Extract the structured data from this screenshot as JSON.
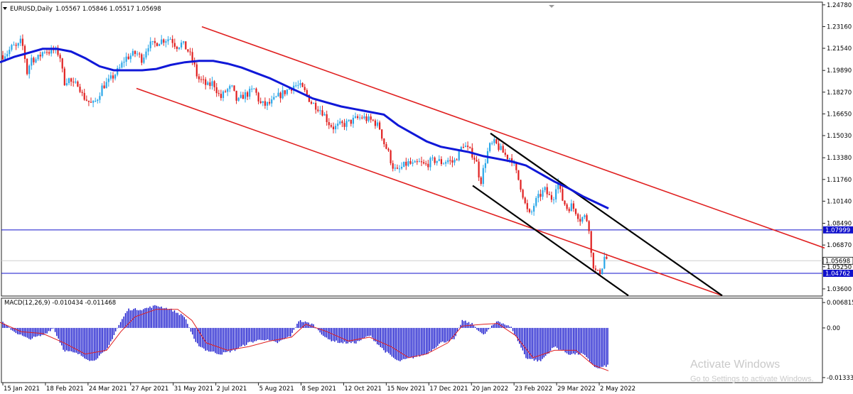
{
  "window": {
    "symbol_caption": "EURUSD,Daily",
    "ohlc_caption": "1.05567 1.05846 1.05517 1.05698",
    "macd_caption": "MACD(12,26,9) -0.010434 -0.011468"
  },
  "watermark": {
    "line1": "Activate Windows",
    "line2": "Go to Settings to activate Windows."
  },
  "colors": {
    "bull": "#2aa7e8",
    "bear": "#e02020",
    "ma": "#1018d8",
    "channel": "#e02020",
    "wedge": "#000000",
    "hline": "#1010cc",
    "macd_hist": "#1010cc",
    "macd_signal": "#e02020",
    "price_label_bg": "#1010cc"
  },
  "chart_data": [
    {
      "type": "candlestick",
      "symbol": "EURUSD",
      "timeframe": "Daily",
      "x_tick_labels": [
        "15 Jan 2021",
        "18 Feb 2021",
        "24 Mar 2021",
        "27 Apr 2021",
        "31 May 2021",
        "2 Jul 2021",
        "5 Aug 2021",
        "8 Sep 2021",
        "12 Oct 2021",
        "15 Nov 2021",
        "17 Dec 2021",
        "20 Jan 2022",
        "23 Feb 2022",
        "29 Mar 2022",
        "2 May 2022"
      ],
      "y_tick_labels": [
        "1.24780",
        "1.23160",
        "1.21540",
        "1.19890",
        "1.18270",
        "1.16650",
        "1.15030",
        "1.13380",
        "1.11760",
        "1.10140",
        "1.08490",
        "1.06870",
        "1.05250",
        "1.03600"
      ],
      "ylim": [
        1.0312,
        1.2493
      ],
      "last_price": "1.05698",
      "horizontal_levels": [
        {
          "price": 1.07999,
          "label": "1.07999"
        },
        {
          "price": 1.04762,
          "label": "1.04762"
        }
      ],
      "price_path": [
        [
          0,
          1.209
        ],
        [
          10,
          1.212
        ],
        [
          18,
          1.217
        ],
        [
          24,
          1.216
        ],
        [
          30,
          1.221
        ],
        [
          34,
          1.212
        ],
        [
          38,
          1.197
        ],
        [
          44,
          1.208
        ],
        [
          52,
          1.207
        ],
        [
          62,
          1.214
        ],
        [
          70,
          1.213
        ],
        [
          76,
          1.214
        ],
        [
          84,
          1.211
        ],
        [
          90,
          1.19
        ],
        [
          96,
          1.193
        ],
        [
          104,
          1.187
        ],
        [
          110,
          1.19
        ],
        [
          116,
          1.18
        ],
        [
          124,
          1.176
        ],
        [
          130,
          1.173
        ],
        [
          136,
          1.177
        ],
        [
          144,
          1.187
        ],
        [
          152,
          1.19
        ],
        [
          160,
          1.195
        ],
        [
          168,
          1.2
        ],
        [
          176,
          1.208
        ],
        [
          184,
          1.21
        ],
        [
          192,
          1.212
        ],
        [
          200,
          1.207
        ],
        [
          208,
          1.218
        ],
        [
          216,
          1.218
        ],
        [
          224,
          1.221
        ],
        [
          232,
          1.222
        ],
        [
          240,
          1.223
        ],
        [
          248,
          1.217
        ],
        [
          256,
          1.219
        ],
        [
          264,
          1.214
        ],
        [
          272,
          1.205
        ],
        [
          278,
          1.193
        ],
        [
          284,
          1.191
        ],
        [
          292,
          1.187
        ],
        [
          300,
          1.19
        ],
        [
          310,
          1.178
        ],
        [
          318,
          1.184
        ],
        [
          326,
          1.186
        ],
        [
          334,
          1.175
        ],
        [
          342,
          1.18
        ],
        [
          350,
          1.182
        ],
        [
          358,
          1.185
        ],
        [
          366,
          1.174
        ],
        [
          374,
          1.173
        ],
        [
          382,
          1.175
        ],
        [
          390,
          1.179
        ],
        [
          398,
          1.182
        ],
        [
          406,
          1.185
        ],
        [
          414,
          1.188
        ],
        [
          422,
          1.187
        ],
        [
          430,
          1.182
        ],
        [
          438,
          1.175
        ],
        [
          446,
          1.172
        ],
        [
          454,
          1.168
        ],
        [
          462,
          1.16
        ],
        [
          470,
          1.156
        ],
        [
          478,
          1.158
        ],
        [
          486,
          1.159
        ],
        [
          494,
          1.161
        ],
        [
          502,
          1.163
        ],
        [
          510,
          1.164
        ],
        [
          518,
          1.162
        ],
        [
          526,
          1.161
        ],
        [
          534,
          1.156
        ],
        [
          540,
          1.145
        ],
        [
          546,
          1.138
        ],
        [
          552,
          1.128
        ],
        [
          558,
          1.123
        ],
        [
          566,
          1.127
        ],
        [
          574,
          1.13
        ],
        [
          582,
          1.128
        ],
        [
          590,
          1.13
        ],
        [
          598,
          1.128
        ],
        [
          606,
          1.131
        ],
        [
          614,
          1.132
        ],
        [
          622,
          1.13
        ],
        [
          630,
          1.132
        ],
        [
          638,
          1.13
        ],
        [
          646,
          1.138
        ],
        [
          652,
          1.144
        ],
        [
          658,
          1.14
        ],
        [
          664,
          1.137
        ],
        [
          670,
          1.131
        ],
        [
          676,
          1.115
        ],
        [
          682,
          1.13
        ],
        [
          688,
          1.142
        ],
        [
          696,
          1.145
        ],
        [
          704,
          1.14
        ],
        [
          712,
          1.135
        ],
        [
          720,
          1.133
        ],
        [
          726,
          1.123
        ],
        [
          734,
          1.11
        ],
        [
          740,
          1.096
        ],
        [
          746,
          1.09
        ],
        [
          752,
          1.1
        ],
        [
          760,
          1.106
        ],
        [
          766,
          1.11
        ],
        [
          772,
          1.105
        ],
        [
          778,
          1.103
        ],
        [
          784,
          1.118
        ],
        [
          790,
          1.104
        ],
        [
          798,
          1.096
        ],
        [
          804,
          1.098
        ],
        [
          810,
          1.094
        ],
        [
          816,
          1.088
        ],
        [
          822,
          1.09
        ],
        [
          828,
          1.086
        ],
        [
          832,
          1.06
        ],
        [
          836,
          1.051
        ],
        [
          840,
          1.047
        ],
        [
          846,
          1.05
        ],
        [
          850,
          1.06
        ],
        [
          856,
          1.057
        ]
      ],
      "moving_average": [
        [
          0,
          1.205
        ],
        [
          20,
          1.209
        ],
        [
          40,
          1.212
        ],
        [
          60,
          1.215
        ],
        [
          80,
          1.215
        ],
        [
          100,
          1.213
        ],
        [
          120,
          1.208
        ],
        [
          140,
          1.202
        ],
        [
          160,
          1.199
        ],
        [
          180,
          1.199
        ],
        [
          200,
          1.199
        ],
        [
          220,
          1.2
        ],
        [
          240,
          1.203
        ],
        [
          260,
          1.205
        ],
        [
          280,
          1.206
        ],
        [
          300,
          1.206
        ],
        [
          320,
          1.204
        ],
        [
          340,
          1.201
        ],
        [
          360,
          1.197
        ],
        [
          380,
          1.193
        ],
        [
          400,
          1.188
        ],
        [
          420,
          1.183
        ],
        [
          440,
          1.178
        ],
        [
          460,
          1.175
        ],
        [
          480,
          1.172
        ],
        [
          500,
          1.17
        ],
        [
          520,
          1.168
        ],
        [
          540,
          1.166
        ],
        [
          560,
          1.158
        ],
        [
          580,
          1.152
        ],
        [
          600,
          1.146
        ],
        [
          620,
          1.142
        ],
        [
          640,
          1.14
        ],
        [
          660,
          1.138
        ],
        [
          680,
          1.135
        ],
        [
          700,
          1.133
        ],
        [
          720,
          1.131
        ],
        [
          740,
          1.128
        ],
        [
          760,
          1.122
        ],
        [
          780,
          1.116
        ],
        [
          800,
          1.111
        ],
        [
          820,
          1.105
        ],
        [
          840,
          1.1
        ],
        [
          856,
          1.096
        ]
      ],
      "drawn_lines": [
        {
          "name": "channel-upper",
          "color": "channel",
          "points": [
            [
              284,
              1.2315
            ],
            [
              1160,
              1.0665
            ]
          ]
        },
        {
          "name": "channel-lower",
          "color": "channel",
          "points": [
            [
              192,
              1.1855
            ],
            [
              1016,
              1.031
            ]
          ]
        },
        {
          "name": "wedge-upper",
          "color": "wedge",
          "points": [
            [
              690,
              1.152
            ],
            [
              1016,
              1.031
            ]
          ]
        },
        {
          "name": "wedge-lower",
          "color": "wedge",
          "points": [
            [
              665,
              1.113
            ],
            [
              884,
              1.031
            ]
          ]
        }
      ]
    },
    {
      "type": "bar",
      "indicator": "MACD(12,26,9)",
      "macd_value": "-0.010434",
      "signal_value": "-0.011468",
      "y_tick_labels": [
        "0.006815",
        "0.00",
        "-0.013336"
      ],
      "ylim": [
        -0.0145,
        0.0078
      ],
      "histogram": [
        [
          0,
          0.002
        ],
        [
          20,
          -0.001
        ],
        [
          40,
          -0.003
        ],
        [
          60,
          -0.002
        ],
        [
          75,
          0.0
        ],
        [
          90,
          -0.006
        ],
        [
          110,
          -0.007
        ],
        [
          130,
          -0.009
        ],
        [
          150,
          -0.006
        ],
        [
          165,
          0.0
        ],
        [
          180,
          0.005
        ],
        [
          200,
          0.005
        ],
        [
          220,
          0.006
        ],
        [
          240,
          0.005
        ],
        [
          260,
          0.003
        ],
        [
          275,
          -0.004
        ],
        [
          290,
          -0.006
        ],
        [
          310,
          -0.007
        ],
        [
          330,
          -0.006
        ],
        [
          350,
          -0.004
        ],
        [
          370,
          -0.003
        ],
        [
          390,
          -0.004
        ],
        [
          410,
          -0.002
        ],
        [
          420,
          0.002
        ],
        [
          440,
          0.001
        ],
        [
          460,
          -0.003
        ],
        [
          480,
          -0.004
        ],
        [
          500,
          -0.004
        ],
        [
          520,
          -0.002
        ],
        [
          540,
          -0.006
        ],
        [
          560,
          -0.009
        ],
        [
          580,
          -0.008
        ],
        [
          600,
          -0.007
        ],
        [
          620,
          -0.004
        ],
        [
          640,
          -0.003
        ],
        [
          650,
          0.002
        ],
        [
          665,
          0.001
        ],
        [
          680,
          -0.002
        ],
        [
          700,
          0.002
        ],
        [
          720,
          0.0
        ],
        [
          740,
          -0.008
        ],
        [
          760,
          -0.009
        ],
        [
          780,
          -0.005
        ],
        [
          800,
          -0.007
        ],
        [
          820,
          -0.007
        ],
        [
          840,
          -0.011
        ],
        [
          856,
          -0.01
        ]
      ],
      "signal_line": [
        [
          0,
          0.0015
        ],
        [
          30,
          -0.001
        ],
        [
          60,
          -0.0015
        ],
        [
          90,
          -0.004
        ],
        [
          120,
          -0.007
        ],
        [
          150,
          -0.006
        ],
        [
          170,
          -0.001
        ],
        [
          190,
          0.003
        ],
        [
          220,
          0.005
        ],
        [
          250,
          0.005
        ],
        [
          270,
          0.002
        ],
        [
          290,
          -0.004
        ],
        [
          320,
          -0.006
        ],
        [
          350,
          -0.005
        ],
        [
          380,
          -0.0035
        ],
        [
          410,
          -0.0025
        ],
        [
          430,
          0.001
        ],
        [
          460,
          -0.001
        ],
        [
          490,
          -0.0035
        ],
        [
          520,
          -0.0025
        ],
        [
          550,
          -0.005
        ],
        [
          575,
          -0.008
        ],
        [
          600,
          -0.007
        ],
        [
          630,
          -0.004
        ],
        [
          650,
          0.0005
        ],
        [
          680,
          0.001
        ],
        [
          700,
          0.0012
        ],
        [
          725,
          -0.002
        ],
        [
          750,
          -0.008
        ],
        [
          780,
          -0.006
        ],
        [
          810,
          -0.006
        ],
        [
          835,
          -0.01
        ],
        [
          856,
          -0.0115
        ]
      ]
    }
  ]
}
